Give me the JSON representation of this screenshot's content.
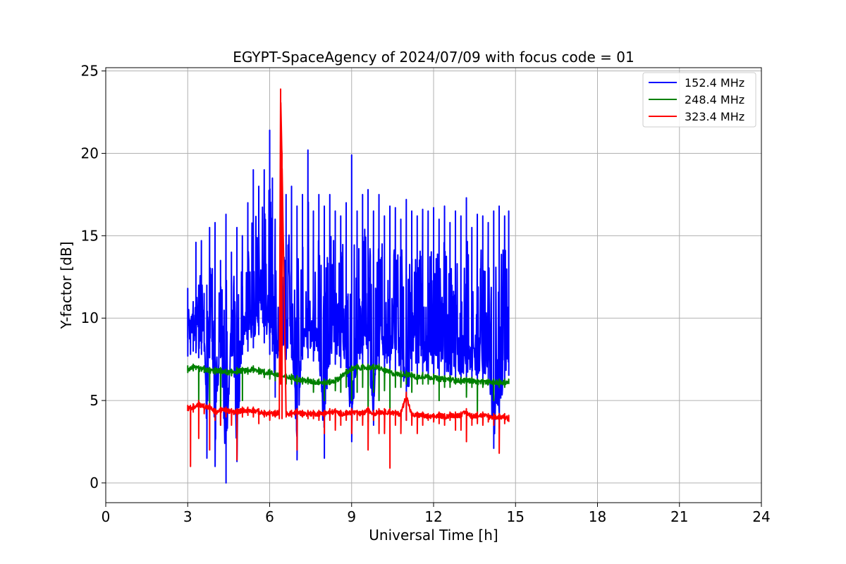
{
  "chart_data": {
    "type": "line",
    "title": "EGYPT-SpaceAgency of 2024/07/09 with focus code = 01",
    "xlabel": "Universal Time [h]",
    "ylabel": "Y-factor [dB]",
    "xlim": [
      0,
      24
    ],
    "ylim": [
      -1.2,
      25.2
    ],
    "xticks": [
      0,
      3,
      6,
      9,
      12,
      15,
      18,
      21,
      24
    ],
    "yticks": [
      0,
      5,
      10,
      15,
      20,
      25
    ],
    "grid": true,
    "legend_position": "top-right",
    "series": [
      {
        "name": "152.4 MHz",
        "color": "#0000ff",
        "x": [
          3.0,
          3.1,
          3.2,
          3.3,
          3.4,
          3.5,
          3.6,
          3.7,
          3.8,
          3.9,
          4.0,
          4.2,
          4.4,
          4.6,
          4.8,
          5.0,
          5.2,
          5.4,
          5.6,
          5.8,
          6.0,
          6.1,
          6.2,
          6.4,
          6.6,
          6.8,
          7.0,
          7.2,
          7.4,
          7.6,
          7.8,
          8.0,
          8.2,
          8.4,
          8.6,
          8.8,
          9.0,
          9.2,
          9.4,
          9.6,
          9.8,
          10.0,
          10.2,
          10.4,
          10.6,
          10.8,
          11.0,
          11.2,
          11.4,
          11.6,
          11.8,
          12.0,
          12.2,
          12.4,
          12.6,
          12.8,
          13.0,
          13.2,
          13.4,
          13.6,
          13.8,
          14.0,
          14.2,
          14.4,
          14.6,
          14.75
        ],
        "low": [
          7.7,
          7.8,
          8.0,
          7.9,
          7.6,
          7.8,
          8.0,
          1.5,
          7.6,
          7.5,
          1.0,
          7.6,
          0.0,
          7.7,
          1.3,
          7.8,
          8.0,
          8.2,
          9.0,
          8.5,
          7.8,
          8.0,
          5.2,
          7.8,
          7.5,
          7.6,
          1.4,
          7.5,
          7.6,
          7.4,
          7.4,
          1.5,
          7.2,
          7.2,
          7.0,
          7.0,
          2.5,
          7.0,
          7.0,
          7.0,
          3.5,
          6.8,
          6.5,
          6.8,
          6.8,
          6.5,
          3.8,
          6.8,
          6.5,
          6.5,
          6.2,
          6.2,
          6.5,
          6.3,
          6.0,
          6.2,
          6.0,
          6.2,
          6.2,
          6.0,
          6.0,
          6.2,
          2.1,
          3.3,
          6.0,
          6.5
        ],
        "high": [
          11.8,
          9.5,
          11.0,
          14.6,
          12.0,
          14.7,
          11.5,
          12.0,
          15.5,
          13.0,
          15.8,
          13.5,
          16.3,
          14.0,
          15.5,
          15.0,
          17.0,
          19.0,
          18.0,
          19.0,
          21.4,
          18.5,
          16.0,
          18.5,
          17.5,
          18.0,
          16.8,
          17.5,
          20.2,
          16.5,
          17.5,
          16.8,
          17.5,
          16.5,
          16.2,
          17.0,
          19.9,
          16.5,
          17.5,
          17.8,
          16.5,
          17.5,
          16.2,
          16.8,
          16.7,
          16.0,
          17.2,
          16.5,
          16.2,
          16.6,
          16.5,
          16.7,
          16.0,
          16.8,
          15.8,
          16.5,
          16.2,
          17.3,
          15.5,
          16.3,
          16.2,
          15.8,
          16.5,
          16.8,
          16.2,
          16.5
        ]
      },
      {
        "name": "248.4 MHz",
        "color": "#008000",
        "x": [
          3.0,
          3.2,
          3.4,
          3.6,
          3.8,
          4.0,
          4.2,
          4.4,
          4.6,
          4.8,
          5.0,
          5.2,
          5.4,
          5.6,
          5.8,
          6.0,
          6.2,
          6.4,
          6.6,
          6.8,
          7.0,
          7.2,
          7.4,
          7.6,
          7.8,
          8.0,
          8.2,
          8.4,
          8.6,
          8.8,
          9.0,
          9.2,
          9.4,
          9.6,
          9.8,
          10.0,
          10.2,
          10.4,
          10.6,
          10.8,
          11.0,
          11.2,
          11.4,
          11.6,
          11.8,
          12.0,
          12.2,
          12.4,
          12.6,
          12.8,
          13.0,
          13.2,
          13.4,
          13.6,
          13.8,
          14.0,
          14.2,
          14.4,
          14.6,
          14.75
        ],
        "low": [
          6.7,
          6.8,
          4.8,
          6.7,
          4.3,
          6.6,
          3.5,
          6.6,
          6.5,
          6.6,
          5.0,
          6.6,
          6.7,
          6.6,
          6.4,
          6.3,
          6.2,
          6.1,
          6.0,
          6.0,
          6.0,
          6.0,
          6.0,
          5.5,
          6.0,
          5.0,
          6.0,
          5.6,
          5.5,
          5.8,
          5.0,
          5.5,
          5.8,
          3.7,
          5.5,
          5.0,
          5.6,
          4.3,
          5.8,
          5.8,
          6.0,
          5.5,
          6.0,
          6.0,
          6.0,
          6.0,
          5.0,
          5.8,
          5.8,
          6.0,
          6.0,
          5.2,
          5.8,
          4.1,
          5.8,
          6.0,
          5.0,
          5.8,
          5.8,
          6.0
        ],
        "high": [
          7.1,
          7.2,
          7.1,
          7.1,
          7.0,
          7.0,
          7.0,
          6.9,
          6.9,
          7.0,
          7.0,
          7.0,
          7.1,
          7.0,
          6.9,
          6.9,
          6.8,
          6.7,
          6.6,
          6.6,
          6.5,
          6.4,
          6.4,
          6.3,
          6.3,
          6.3,
          6.3,
          6.4,
          6.6,
          6.9,
          7.1,
          7.2,
          7.2,
          7.2,
          7.2,
          7.2,
          7.0,
          6.9,
          6.8,
          6.8,
          6.8,
          6.7,
          6.6,
          6.7,
          6.6,
          6.6,
          6.5,
          6.5,
          6.5,
          6.4,
          6.4,
          6.4,
          6.4,
          6.3,
          6.3,
          6.3,
          6.3,
          6.3,
          6.3,
          6.3
        ]
      },
      {
        "name": "323.4 MHz",
        "color": "#ff0000",
        "x": [
          3.0,
          3.1,
          3.2,
          3.4,
          3.6,
          3.8,
          4.0,
          4.2,
          4.4,
          4.6,
          4.8,
          5.0,
          5.2,
          5.4,
          5.6,
          5.8,
          6.0,
          6.2,
          6.35,
          6.4,
          6.45,
          6.6,
          6.8,
          7.0,
          7.2,
          7.4,
          7.6,
          7.8,
          8.0,
          8.2,
          8.4,
          8.6,
          8.8,
          9.0,
          9.2,
          9.4,
          9.6,
          9.8,
          10.0,
          10.2,
          10.4,
          10.6,
          10.8,
          11.0,
          11.2,
          11.4,
          11.6,
          11.8,
          12.0,
          12.2,
          12.4,
          12.6,
          12.8,
          13.0,
          13.2,
          13.4,
          13.6,
          13.8,
          14.0,
          14.2,
          14.4,
          14.6,
          14.75
        ],
        "low": [
          4.4,
          1.0,
          4.3,
          2.7,
          4.2,
          2.0,
          3.8,
          3.5,
          4.0,
          3.5,
          1.4,
          4.0,
          4.1,
          4.0,
          3.6,
          4.0,
          3.8,
          4.0,
          3.9,
          6.0,
          3.9,
          4.0,
          4.0,
          2.0,
          4.0,
          3.9,
          3.9,
          3.8,
          3.0,
          3.8,
          3.2,
          3.5,
          3.8,
          3.0,
          3.8,
          3.5,
          2.0,
          3.8,
          3.0,
          3.0,
          0.9,
          3.5,
          3.0,
          3.8,
          3.5,
          3.0,
          3.5,
          3.8,
          3.7,
          3.6,
          3.5,
          3.8,
          3.2,
          3.2,
          2.5,
          3.5,
          3.6,
          3.5,
          3.7,
          3.5,
          1.8,
          3.6,
          3.7
        ],
        "high": [
          4.7,
          4.7,
          4.8,
          5.0,
          4.8,
          4.8,
          4.5,
          4.6,
          4.6,
          4.5,
          4.5,
          4.6,
          4.6,
          4.6,
          4.5,
          4.4,
          4.4,
          4.4,
          4.5,
          23.9,
          20.0,
          4.4,
          4.4,
          4.5,
          4.4,
          4.4,
          4.4,
          4.4,
          4.4,
          4.5,
          4.5,
          4.4,
          4.4,
          4.5,
          4.4,
          4.4,
          4.6,
          4.4,
          4.5,
          4.5,
          4.5,
          4.4,
          4.4,
          5.5,
          4.3,
          4.3,
          4.3,
          4.2,
          4.2,
          4.3,
          4.2,
          4.3,
          4.3,
          4.3,
          4.5,
          4.2,
          4.3,
          4.3,
          4.2,
          4.2,
          4.2,
          4.2,
          4.1
        ]
      }
    ]
  }
}
